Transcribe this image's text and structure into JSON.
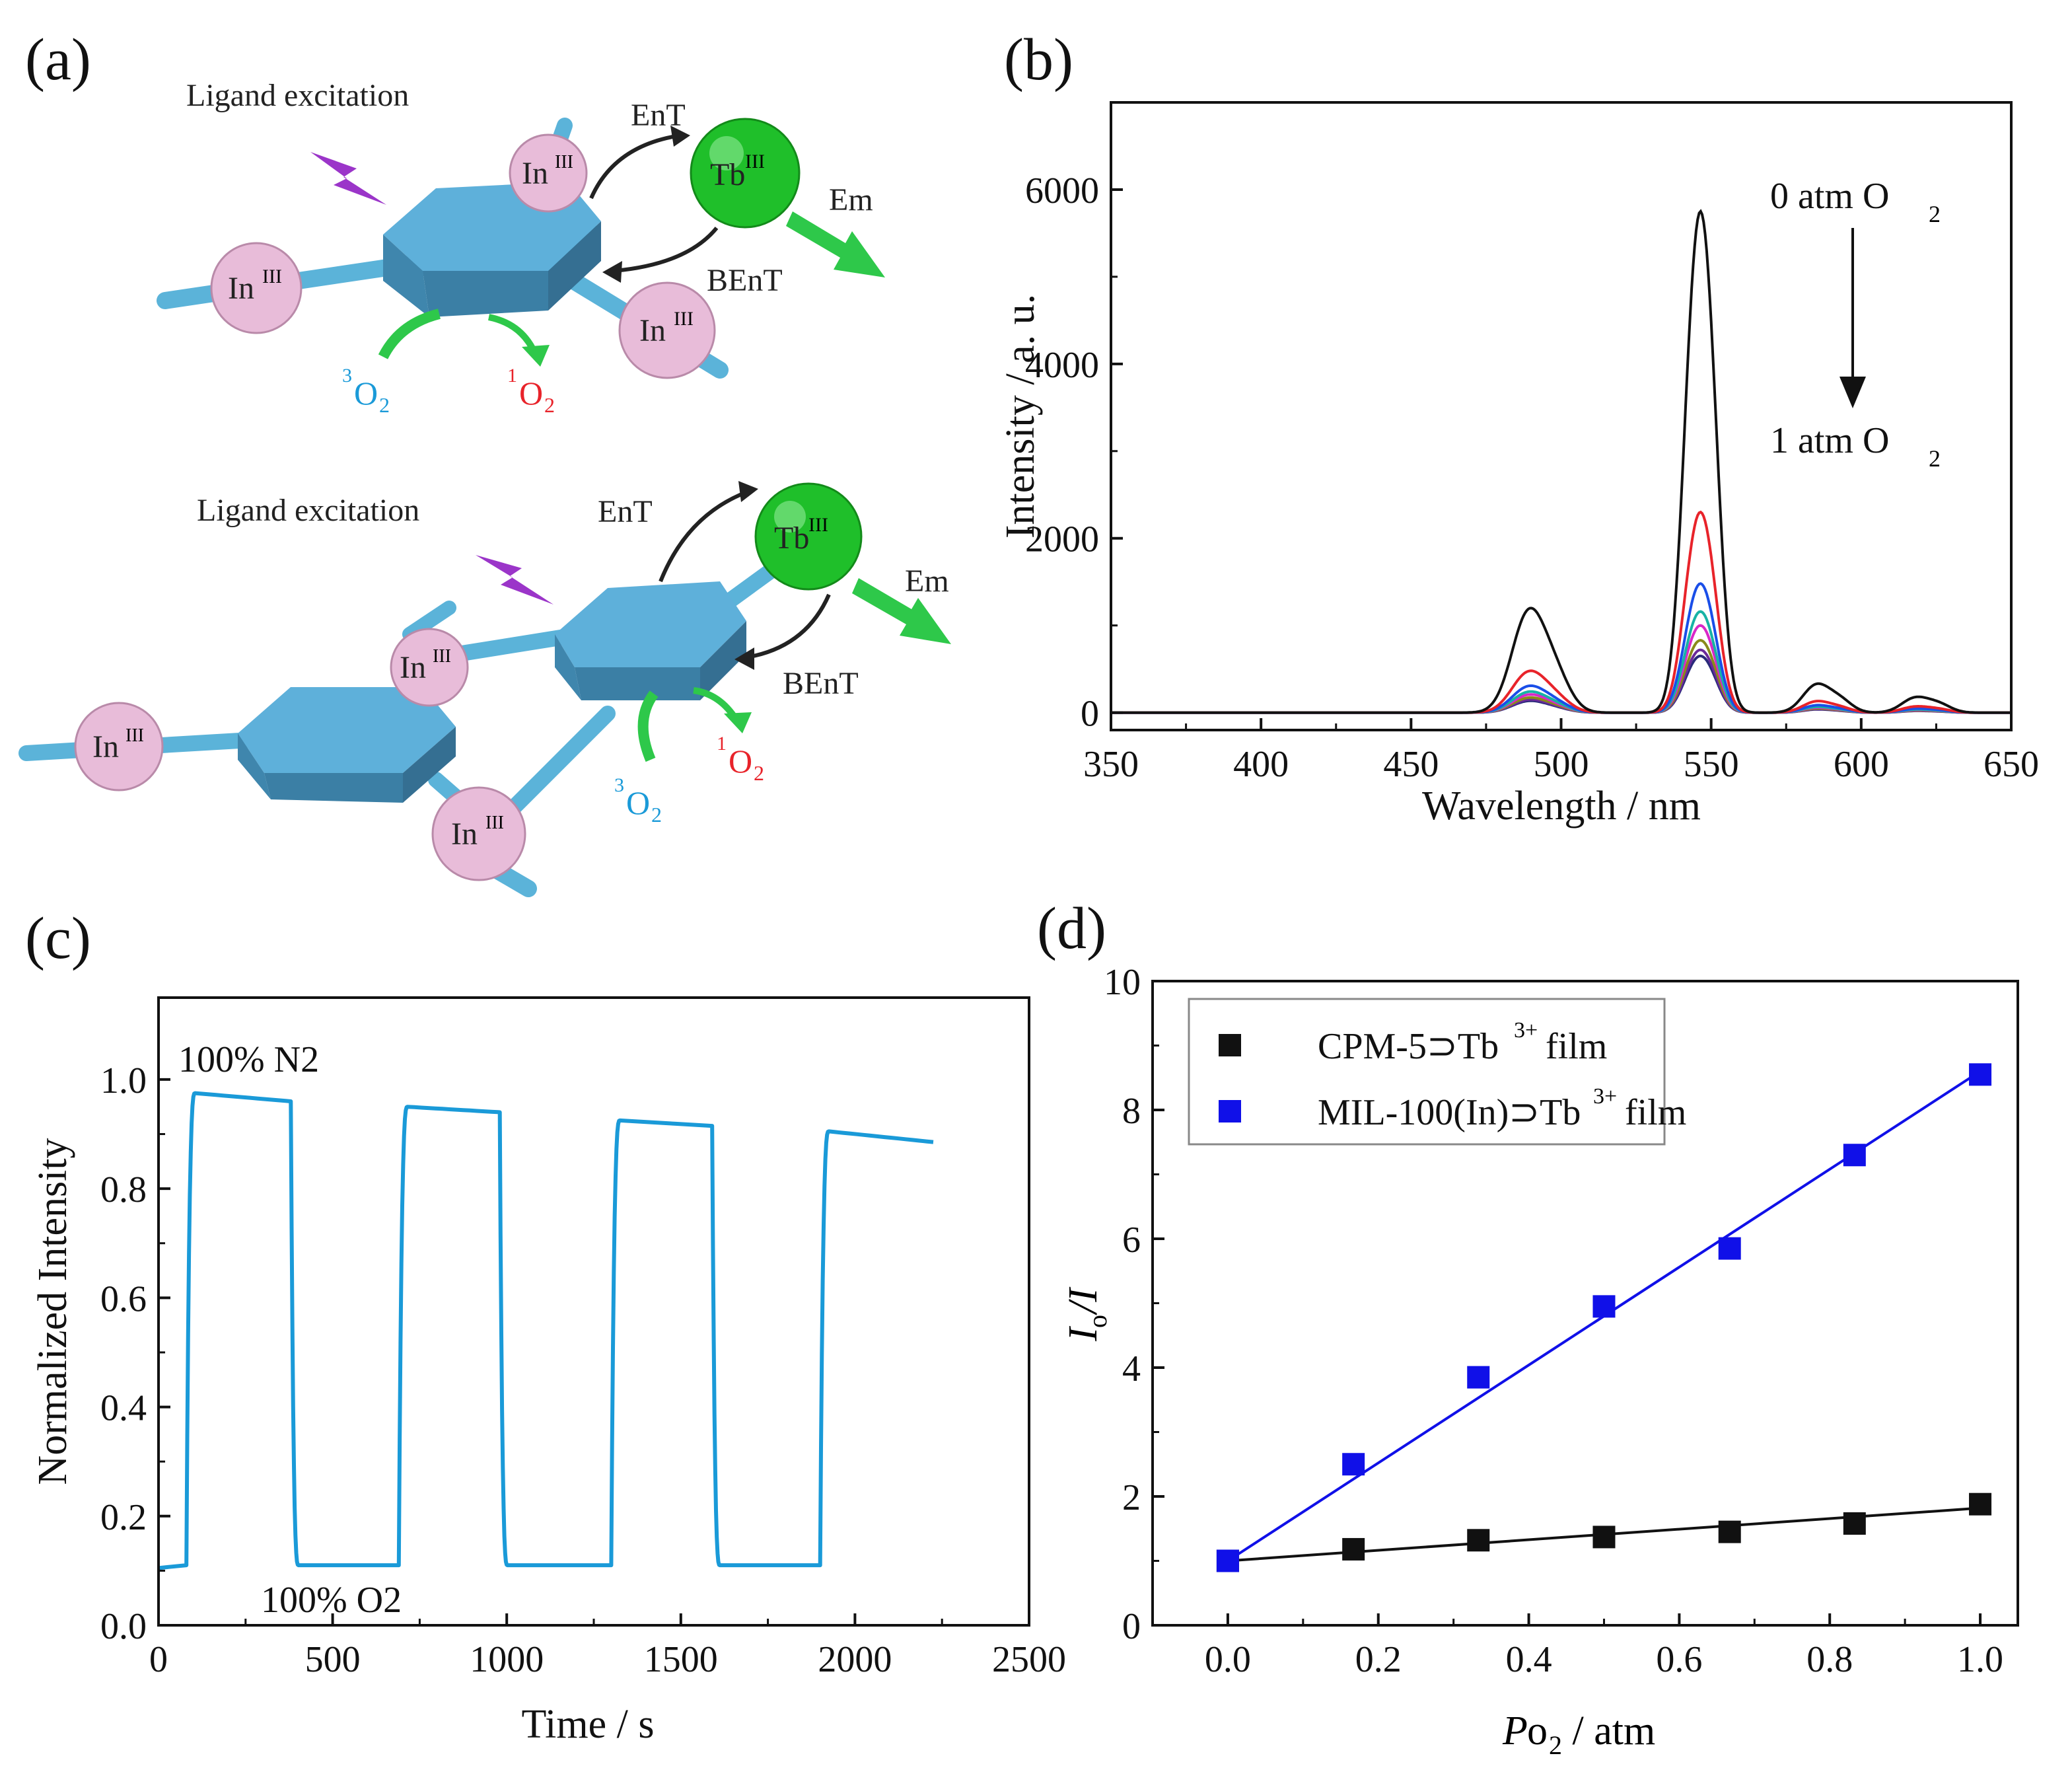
{
  "colors": {
    "stick": "#5bb3d9",
    "hexagon": "#5aa9cf",
    "in_node": "#e6b8d8",
    "tb_node": "#1fbf2a",
    "arrow_green": "#2ec84a",
    "o2_triplet": "#1a9ad8",
    "o2_singlet": "#e8232a",
    "lightning": "#9b35c9",
    "trace_c": "#1a9ad8",
    "series_black": "#111111",
    "series_blue": "#1010e8"
  },
  "panel_a": {
    "letter": "(a)",
    "top": {
      "title": "Ligand excitation",
      "ent": "EnT",
      "bent": "BEnT",
      "em": "Em",
      "tb": "Tb",
      "tb_sup": "III",
      "in": "In",
      "in_sup": "III",
      "o2_triplet": [
        "3",
        "O",
        "2"
      ],
      "o2_singlet": [
        "1",
        "O",
        "2"
      ]
    },
    "bottom": {
      "title": "Ligand excitation",
      "ent": "EnT",
      "bent": "BEnT",
      "em": "Em",
      "tb": "Tb",
      "tb_sup": "III",
      "in": "In",
      "in_sup": "III",
      "o2_triplet": [
        "3",
        "O",
        "2"
      ],
      "o2_singlet": [
        "1",
        "O",
        "2"
      ]
    }
  },
  "chart_data": [
    {
      "panel": "(b)",
      "type": "line",
      "xlabel": "Wavelength / nm",
      "ylabel": "Intensity / a. u.",
      "xlim": [
        350,
        650
      ],
      "ylim": [
        -200,
        7000
      ],
      "xticks": [
        350,
        400,
        450,
        500,
        550,
        600,
        650
      ],
      "yticks": [
        0,
        2000,
        4000,
        6000
      ],
      "annotation_top": [
        "0 atm O",
        "2"
      ],
      "annotation_bottom": [
        "1 atm O",
        "2"
      ],
      "peaks": [
        {
          "center": 489,
          "width": 5.5,
          "rel": 1.0
        },
        {
          "center": 498,
          "width": 5,
          "rel": 0.35
        },
        {
          "center": 544,
          "width": 4,
          "rel": 3.2
        },
        {
          "center": 549,
          "width": 4,
          "rel": 3.1
        },
        {
          "center": 585,
          "width": 4.5,
          "rel": 0.28
        },
        {
          "center": 593,
          "width": 4,
          "rel": 0.12
        },
        {
          "center": 618,
          "width": 4.5,
          "rel": 0.15
        },
        {
          "center": 626,
          "width": 4,
          "rel": 0.08
        }
      ],
      "series": [
        {
          "color": "#111111",
          "peak": 5750
        },
        {
          "color": "#e8232a",
          "peak": 2300
        },
        {
          "color": "#1a4ee8",
          "peak": 1480
        },
        {
          "color": "#17b3a5",
          "peak": 1160
        },
        {
          "color": "#d928c8",
          "peak": 1000
        },
        {
          "color": "#8a8a1a",
          "peak": 830
        },
        {
          "color": "#6b2a9a",
          "peak": 720
        },
        {
          "color": "#2a2a7a",
          "peak": 650
        }
      ]
    },
    {
      "panel": "(c)",
      "type": "line",
      "xlabel": "Time / s",
      "ylabel": "Normalized Intensity",
      "xlim": [
        0,
        2500
      ],
      "ylim": [
        0,
        1.15
      ],
      "xticks": [
        0,
        500,
        1000,
        1500,
        2000,
        2500
      ],
      "yticks": [
        0.0,
        0.2,
        0.4,
        0.6,
        0.8,
        1.0
      ],
      "ytick_labels": [
        "0.0",
        "0.2",
        "0.4",
        "0.6",
        "0.8",
        "1.0"
      ],
      "annotation_top": "100% N2",
      "annotation_bottom": "100% O2",
      "low_level": 0.11,
      "cycles": [
        {
          "rise": 80,
          "fall": 380,
          "high_start": 0.975,
          "high_end": 0.96
        },
        {
          "rise": 690,
          "fall": 980,
          "high_start": 0.95,
          "high_end": 0.94
        },
        {
          "rise": 1300,
          "fall": 1590,
          "high_start": 0.925,
          "high_end": 0.915
        },
        {
          "rise": 1900,
          "fall": null,
          "high_start": 0.905,
          "high_end": 0.885
        }
      ],
      "x_end": 2230
    },
    {
      "panel": "(d)",
      "type": "scatter",
      "xlabel": [
        "P",
        "o",
        "2",
        " / atm"
      ],
      "ylabel": [
        "I",
        "o",
        "/I"
      ],
      "xlim": [
        -0.1,
        1.05
      ],
      "ylim": [
        0,
        10
      ],
      "xticks": [
        0.0,
        0.2,
        0.4,
        0.6,
        0.8,
        1.0
      ],
      "xtick_labels": [
        "0.0",
        "0.2",
        "0.4",
        "0.6",
        "0.8",
        "1.0"
      ],
      "yticks": [
        0,
        2,
        4,
        6,
        8,
        10
      ],
      "legend_placement": "top-left",
      "series": [
        {
          "name": [
            "CPM-5⊃Tb",
            "3+",
            " film"
          ],
          "color": "#111111",
          "x": [
            0,
            0.167,
            0.333,
            0.5,
            0.667,
            0.833,
            1.0
          ],
          "y": [
            1.0,
            1.18,
            1.32,
            1.37,
            1.45,
            1.58,
            1.88
          ],
          "fit": [
            1.0,
            1.82
          ]
        },
        {
          "name": [
            "MIL-100(In)⊃Tb",
            "3+",
            " film"
          ],
          "color": "#1010e8",
          "x": [
            0,
            0.167,
            0.333,
            0.5,
            0.667,
            0.833,
            1.0
          ],
          "y": [
            1.0,
            2.5,
            3.85,
            4.95,
            5.85,
            7.3,
            8.55
          ],
          "fit": [
            1.0,
            8.6
          ]
        }
      ]
    }
  ]
}
